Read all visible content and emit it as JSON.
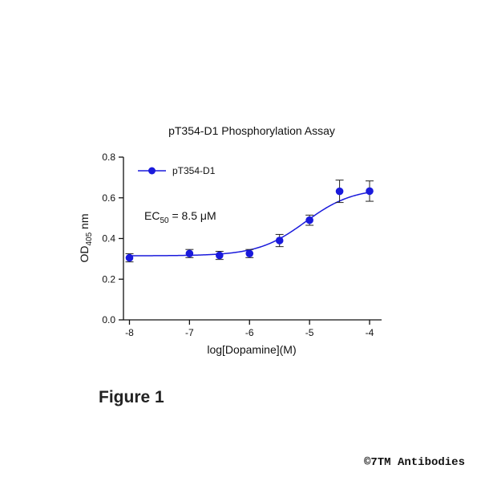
{
  "chart_data": {
    "type": "scatter",
    "title": "pT354-D1 Phosphorylation Assay",
    "xlabel": "log[Dopamine](M)",
    "ylabel": {
      "main": "OD",
      "sub": "405",
      "suffix": " nm"
    },
    "xlim": [
      -8.1,
      -3.8
    ],
    "ylim": [
      0,
      0.8
    ],
    "xticks": [
      -8,
      -7,
      -6,
      -5,
      -4
    ],
    "yticks": [
      0.0,
      0.2,
      0.4,
      0.6,
      0.8
    ],
    "xtick_labels": [
      "-8",
      "-7",
      "-6",
      "-5",
      "-4"
    ],
    "ytick_labels": [
      "0.0",
      "0.2",
      "0.4",
      "0.6",
      "0.8"
    ],
    "series": [
      {
        "name": "pT354-D1",
        "color": "#1a1adc",
        "x": [
          -8,
          -7,
          -6.5,
          -6,
          -5.5,
          -5,
          -4.5,
          -4
        ],
        "y": [
          0.305,
          0.326,
          0.317,
          0.326,
          0.39,
          0.49,
          0.632,
          0.633
        ],
        "err": [
          0.02,
          0.02,
          0.02,
          0.02,
          0.03,
          0.025,
          0.055,
          0.05
        ]
      }
    ],
    "fit": {
      "bottom": 0.315,
      "top": 0.648,
      "logEC50": -5.07,
      "hill": 1.1
    },
    "annotation": {
      "main": "EC",
      "sub": "50",
      "suffix": " = 8.5 μM"
    },
    "legend": "top-left",
    "grid": false
  },
  "figure_label": "Figure 1",
  "copyright": "©7TM Antibodies"
}
